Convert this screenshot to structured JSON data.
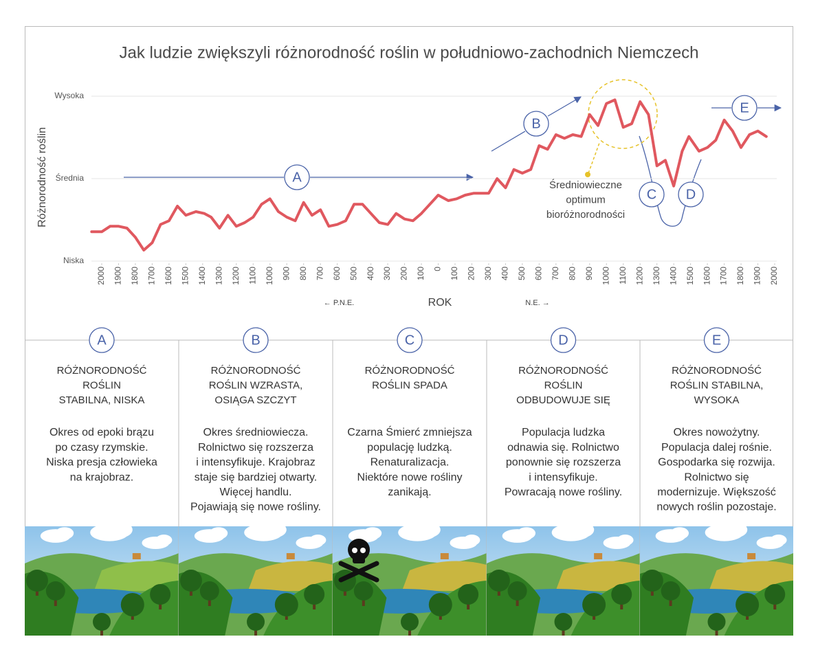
{
  "chart_data": {
    "type": "line",
    "title": "Jak ludzie zwiększyli różnorodność roślin w południowo-zachodnich Niemczech",
    "y_label": "Różnorodność roślin",
    "x_label": "ROK",
    "x_left_note": "← P.N.E.",
    "x_right_note": "N.E. →",
    "series": [
      {
        "color": "#e0585f",
        "x": [
          -2060,
          -2000,
          -1950,
          -1900,
          -1850,
          -1800,
          -1750,
          -1700,
          -1650,
          -1600,
          -1550,
          -1500,
          -1440,
          -1390,
          -1350,
          -1300,
          -1250,
          -1200,
          -1150,
          -1100,
          -1050,
          -1000,
          -950,
          -900,
          -850,
          -800,
          -750,
          -700,
          -650,
          -600,
          -550,
          -500,
          -450,
          -400,
          -350,
          -300,
          -250,
          -200,
          -150,
          -100,
          -50,
          0,
          60,
          110,
          160,
          210,
          300,
          350,
          400,
          450,
          500,
          550,
          600,
          650,
          700,
          750,
          800,
          850,
          900,
          950,
          1000,
          1050,
          1100,
          1150,
          1200,
          1250,
          1300,
          1350,
          1400,
          1450,
          1490,
          1550,
          1600,
          1650,
          1700,
          1750,
          1800,
          1850,
          1900,
          1950
        ],
        "values": [
          1.6,
          1.6,
          1.9,
          1.9,
          1.8,
          1.3,
          0.6,
          1.0,
          2.0,
          2.2,
          3.0,
          2.5,
          2.7,
          2.6,
          2.4,
          1.8,
          2.5,
          1.9,
          2.1,
          2.4,
          3.1,
          3.4,
          2.7,
          2.4,
          2.2,
          3.2,
          2.5,
          2.8,
          1.9,
          2.0,
          2.2,
          3.1,
          3.1,
          2.6,
          2.1,
          2.0,
          2.6,
          2.3,
          2.2,
          2.6,
          3.1,
          3.6,
          3.3,
          3.4,
          3.6,
          3.7,
          3.7,
          4.5,
          4.0,
          5.0,
          4.8,
          5.0,
          6.3,
          6.1,
          6.9,
          6.7,
          6.9,
          6.8,
          8.0,
          7.4,
          8.6,
          8.8,
          7.3,
          7.5,
          8.7,
          8.0,
          5.2,
          5.5,
          4.1,
          6.0,
          6.8,
          6.0,
          6.2,
          6.6,
          7.7,
          7.1,
          6.2,
          6.9,
          7.1,
          6.8
        ]
      }
    ],
    "xlim": [
      -2060,
      2000
    ],
    "xticks": [
      {
        "value": -2000,
        "label": "2000"
      },
      {
        "value": -1900,
        "label": "1900"
      },
      {
        "value": -1800,
        "label": "1800"
      },
      {
        "value": -1700,
        "label": "1700"
      },
      {
        "value": -1600,
        "label": "1600"
      },
      {
        "value": -1500,
        "label": "1500"
      },
      {
        "value": -1400,
        "label": "1400"
      },
      {
        "value": -1300,
        "label": "1300"
      },
      {
        "value": -1200,
        "label": "1200"
      },
      {
        "value": -1100,
        "label": "1100"
      },
      {
        "value": -1000,
        "label": "1000"
      },
      {
        "value": -900,
        "label": "900"
      },
      {
        "value": -800,
        "label": "800"
      },
      {
        "value": -700,
        "label": "700"
      },
      {
        "value": -600,
        "label": "600"
      },
      {
        "value": -500,
        "label": "500"
      },
      {
        "value": -400,
        "label": "400"
      },
      {
        "value": -300,
        "label": "300"
      },
      {
        "value": -200,
        "label": "200"
      },
      {
        "value": -100,
        "label": "100"
      },
      0,
      100,
      200,
      300,
      400,
      500,
      600,
      700,
      800,
      900,
      1000,
      1100,
      1200,
      1300,
      1400,
      1500,
      1600,
      1700,
      1800,
      1900,
      2000
    ],
    "ylim": [
      0,
      9
    ],
    "yticks": [
      {
        "value": 0,
        "label": "Niska"
      },
      {
        "value": 4.5,
        "label": "Średnia"
      },
      {
        "value": 9,
        "label": "Wysoka"
      }
    ],
    "grid": true,
    "phases": [
      "A",
      "B",
      "C",
      "D",
      "E"
    ],
    "annotation": [
      "Średniowieczne",
      "optimum",
      "bioróżnorodności"
    ]
  },
  "panels": [
    {
      "letter": "A",
      "title": [
        "RÓŻNORODNOŚĆ",
        "ROŚLIN",
        "STABILNA, NISKA"
      ],
      "body": [
        "Okres od epoki brązu",
        "po czasy rzymskie.",
        "Niska presja człowieka",
        "na krajobraz."
      ]
    },
    {
      "letter": "B",
      "title": [
        "RÓŻNORODNOŚĆ",
        "ROŚLIN WZRASTA,",
        "OSIĄGA SZCZYT"
      ],
      "body": [
        "Okres średniowiecza.",
        "Rolnictwo się rozszerza",
        "i intensyfikuje. Krajobraz",
        "staje się bardziej otwarty.",
        "Więcej handlu.",
        "Pojawiają się nowe rośliny."
      ]
    },
    {
      "letter": "C",
      "title": [
        "RÓŻNORODNOŚĆ",
        "ROŚLIN SPADA"
      ],
      "body": [
        "Czarna Śmierć zmniejsza",
        "populację ludzką.",
        "Renaturalizacja.",
        "Niektóre nowe rośliny",
        "zanikają."
      ]
    },
    {
      "letter": "D",
      "title": [
        "RÓŻNORODNOŚĆ",
        "ROŚLIN",
        "ODBUDOWUJE SIĘ"
      ],
      "body": [
        "Populacja ludzka",
        "odnawia się. Rolnictwo",
        "ponownie się rozszerza",
        "i intensyfikuje.",
        "Powracają nowe rośliny."
      ]
    },
    {
      "letter": "E",
      "title": [
        "RÓŻNORODNOŚĆ",
        "ROŚLIN STABILNA,",
        "WYSOKA"
      ],
      "body": [
        "Okres nowożytny.",
        "Populacja dalej rośnie.",
        "Gospodarka się rozwija.",
        "Rolnictwo się",
        "modernizuje. Większość",
        "nowych roślin pozostaje."
      ]
    }
  ]
}
